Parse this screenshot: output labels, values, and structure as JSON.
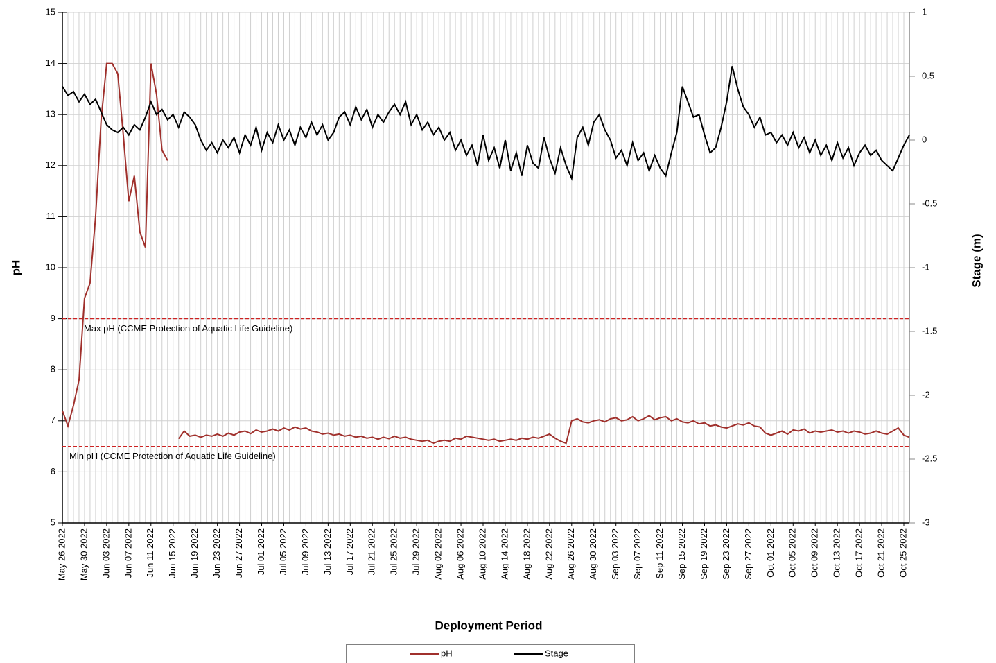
{
  "chart_data": {
    "type": "line",
    "x_label": "Deployment Period",
    "y_label": "pH",
    "y2_label": "Stage (m)",
    "ylim": [
      5,
      15
    ],
    "yticks": [
      5,
      6,
      7,
      8,
      9,
      10,
      11,
      12,
      13,
      14,
      15
    ],
    "y2lim": [
      -3,
      1
    ],
    "y2ticks": [
      -3,
      -2.5,
      -2,
      -1.5,
      -1,
      -0.5,
      0,
      0.5,
      1
    ],
    "grid": true,
    "legend": "bottom",
    "xlim": [
      "2022-05-26",
      "2022-10-26"
    ],
    "xticks": [
      {
        "value": "2022-05-26",
        "label": "May 26 2022"
      },
      {
        "value": "2022-05-30",
        "label": "May 30 2022"
      },
      {
        "value": "2022-06-03",
        "label": "Jun 03 2022"
      },
      {
        "value": "2022-06-07",
        "label": "Jun 07 2022"
      },
      {
        "value": "2022-06-11",
        "label": "Jun 11 2022"
      },
      {
        "value": "2022-06-15",
        "label": "Jun 15 2022"
      },
      {
        "value": "2022-06-19",
        "label": "Jun 19 2022"
      },
      {
        "value": "2022-06-23",
        "label": "Jun 23 2022"
      },
      {
        "value": "2022-06-27",
        "label": "Jun 27 2022"
      },
      {
        "value": "2022-07-01",
        "label": "Jul 01 2022"
      },
      {
        "value": "2022-07-05",
        "label": "Jul 05 2022"
      },
      {
        "value": "2022-07-09",
        "label": "Jul 09 2022"
      },
      {
        "value": "2022-07-13",
        "label": "Jul 13 2022"
      },
      {
        "value": "2022-07-17",
        "label": "Jul 17 2022"
      },
      {
        "value": "2022-07-21",
        "label": "Jul 21 2022"
      },
      {
        "value": "2022-07-25",
        "label": "Jul 25 2022"
      },
      {
        "value": "2022-07-29",
        "label": "Jul 29 2022"
      },
      {
        "value": "2022-08-02",
        "label": "Aug 02 2022"
      },
      {
        "value": "2022-08-06",
        "label": "Aug 06 2022"
      },
      {
        "value": "2022-08-10",
        "label": "Aug 10 2022"
      },
      {
        "value": "2022-08-14",
        "label": "Aug 14 2022"
      },
      {
        "value": "2022-08-18",
        "label": "Aug 18 2022"
      },
      {
        "value": "2022-08-22",
        "label": "Aug 22 2022"
      },
      {
        "value": "2022-08-26",
        "label": "Aug 26 2022"
      },
      {
        "value": "2022-08-30",
        "label": "Aug 30 2022"
      },
      {
        "value": "2022-09-03",
        "label": "Sep 03 2022"
      },
      {
        "value": "2022-09-07",
        "label": "Sep 07 2022"
      },
      {
        "value": "2022-09-11",
        "label": "Sep 11 2022"
      },
      {
        "value": "2022-09-15",
        "label": "Sep 15 2022"
      },
      {
        "value": "2022-09-19",
        "label": "Sep 19 2022"
      },
      {
        "value": "2022-09-23",
        "label": "Sep 23 2022"
      },
      {
        "value": "2022-09-27",
        "label": "Sep 27 2022"
      },
      {
        "value": "2022-10-01",
        "label": "Oct 01 2022"
      },
      {
        "value": "2022-10-05",
        "label": "Oct 05 2022"
      },
      {
        "value": "2022-10-09",
        "label": "Oct 09 2022"
      },
      {
        "value": "2022-10-13",
        "label": "Oct 13 2022"
      },
      {
        "value": "2022-10-17",
        "label": "Oct 17 2022"
      },
      {
        "value": "2022-10-21",
        "label": "Oct 21 2022"
      },
      {
        "value": "2022-10-25",
        "label": "Oct 25 2022"
      }
    ],
    "reference_lines": [
      {
        "value": 9,
        "label": "Max pH  (CCME  Protection of Aquatic Life Guideline)",
        "color": "#cc2222"
      },
      {
        "value": 6.5,
        "label": "Min pH  (CCME  Protection of Aquatic Life Guideline)",
        "color": "#cc2222"
      }
    ],
    "x": [
      "2022-05-26",
      "2022-05-27",
      "2022-05-28",
      "2022-05-29",
      "2022-05-30",
      "2022-05-31",
      "2022-06-01",
      "2022-06-02",
      "2022-06-03",
      "2022-06-04",
      "2022-06-05",
      "2022-06-06",
      "2022-06-07",
      "2022-06-08",
      "2022-06-09",
      "2022-06-10",
      "2022-06-11",
      "2022-06-12",
      "2022-06-13",
      "2022-06-14",
      "2022-06-15",
      "2022-06-16",
      "2022-06-17",
      "2022-06-18",
      "2022-06-19",
      "2022-06-20",
      "2022-06-21",
      "2022-06-22",
      "2022-06-23",
      "2022-06-24",
      "2022-06-25",
      "2022-06-26",
      "2022-06-27",
      "2022-06-28",
      "2022-06-29",
      "2022-06-30",
      "2022-07-01",
      "2022-07-02",
      "2022-07-03",
      "2022-07-04",
      "2022-07-05",
      "2022-07-06",
      "2022-07-07",
      "2022-07-08",
      "2022-07-09",
      "2022-07-10",
      "2022-07-11",
      "2022-07-12",
      "2022-07-13",
      "2022-07-14",
      "2022-07-15",
      "2022-07-16",
      "2022-07-17",
      "2022-07-18",
      "2022-07-19",
      "2022-07-20",
      "2022-07-21",
      "2022-07-22",
      "2022-07-23",
      "2022-07-24",
      "2022-07-25",
      "2022-07-26",
      "2022-07-27",
      "2022-07-28",
      "2022-07-29",
      "2022-07-30",
      "2022-07-31",
      "2022-08-01",
      "2022-08-02",
      "2022-08-03",
      "2022-08-04",
      "2022-08-05",
      "2022-08-06",
      "2022-08-07",
      "2022-08-08",
      "2022-08-09",
      "2022-08-10",
      "2022-08-11",
      "2022-08-12",
      "2022-08-13",
      "2022-08-14",
      "2022-08-15",
      "2022-08-16",
      "2022-08-17",
      "2022-08-18",
      "2022-08-19",
      "2022-08-20",
      "2022-08-21",
      "2022-08-22",
      "2022-08-23",
      "2022-08-24",
      "2022-08-25",
      "2022-08-26",
      "2022-08-27",
      "2022-08-28",
      "2022-08-29",
      "2022-08-30",
      "2022-08-31",
      "2022-09-01",
      "2022-09-02",
      "2022-09-03",
      "2022-09-04",
      "2022-09-05",
      "2022-09-06",
      "2022-09-07",
      "2022-09-08",
      "2022-09-09",
      "2022-09-10",
      "2022-09-11",
      "2022-09-12",
      "2022-09-13",
      "2022-09-14",
      "2022-09-15",
      "2022-09-16",
      "2022-09-17",
      "2022-09-18",
      "2022-09-19",
      "2022-09-20",
      "2022-09-21",
      "2022-09-22",
      "2022-09-23",
      "2022-09-24",
      "2022-09-25",
      "2022-09-26",
      "2022-09-27",
      "2022-09-28",
      "2022-09-29",
      "2022-09-30",
      "2022-10-01",
      "2022-10-02",
      "2022-10-03",
      "2022-10-04",
      "2022-10-05",
      "2022-10-06",
      "2022-10-07",
      "2022-10-08",
      "2022-10-09",
      "2022-10-10",
      "2022-10-11",
      "2022-10-12",
      "2022-10-13",
      "2022-10-14",
      "2022-10-15",
      "2022-10-16",
      "2022-10-17",
      "2022-10-18",
      "2022-10-19",
      "2022-10-20",
      "2022-10-21",
      "2022-10-22",
      "2022-10-23",
      "2022-10-24",
      "2022-10-25",
      "2022-10-26"
    ],
    "series": [
      {
        "name": "pH",
        "color": "#a0302c",
        "axis": "y",
        "values": [
          7.2,
          6.9,
          7.3,
          7.8,
          9.4,
          9.7,
          11.0,
          12.9,
          14,
          14,
          13.8,
          12.6,
          11.3,
          11.8,
          10.7,
          10.4,
          14,
          13.4,
          12.3,
          12.1,
          null,
          6.65,
          6.8,
          6.7,
          6.72,
          6.68,
          6.72,
          6.7,
          6.74,
          6.7,
          6.76,
          6.72,
          6.78,
          6.8,
          6.75,
          6.82,
          6.78,
          6.8,
          6.84,
          6.8,
          6.86,
          6.82,
          6.88,
          6.84,
          6.86,
          6.8,
          6.78,
          6.74,
          6.76,
          6.72,
          6.74,
          6.7,
          6.72,
          6.68,
          6.7,
          6.66,
          6.68,
          6.64,
          6.68,
          6.65,
          6.7,
          6.66,
          6.68,
          6.64,
          6.62,
          6.6,
          6.62,
          6.56,
          6.6,
          6.62,
          6.6,
          6.66,
          6.64,
          6.7,
          6.68,
          6.66,
          6.64,
          6.62,
          6.64,
          6.6,
          6.62,
          6.64,
          6.62,
          6.66,
          6.64,
          6.68,
          6.66,
          6.7,
          6.74,
          6.66,
          6.6,
          6.56,
          7.0,
          7.04,
          6.98,
          6.96,
          7.0,
          7.02,
          6.98,
          7.04,
          7.06,
          7.0,
          7.02,
          7.08,
          7.0,
          7.04,
          7.1,
          7.02,
          7.06,
          7.08,
          7.0,
          7.04,
          6.98,
          6.96,
          7.0,
          6.94,
          6.96,
          6.9,
          6.92,
          6.88,
          6.86,
          6.9,
          6.94,
          6.92,
          6.96,
          6.9,
          6.88,
          6.76,
          6.72,
          6.76,
          6.8,
          6.74,
          6.82,
          6.8,
          6.84,
          6.76,
          6.8,
          6.78,
          6.8,
          6.82,
          6.78,
          6.8,
          6.76,
          6.8,
          6.78,
          6.74,
          6.76,
          6.8,
          6.76,
          6.74,
          6.8,
          6.86,
          6.72,
          6.68
        ]
      },
      {
        "name": "Stage",
        "color": "#000000",
        "axis": "y2",
        "values": [
          0.42,
          0.35,
          0.38,
          0.3,
          0.36,
          0.28,
          0.32,
          0.22,
          0.12,
          0.08,
          0.06,
          0.1,
          0.04,
          0.12,
          0.08,
          0.18,
          0.3,
          0.2,
          0.24,
          0.16,
          0.2,
          0.1,
          0.22,
          0.18,
          0.12,
          0.0,
          -0.08,
          -0.02,
          -0.1,
          0.0,
          -0.06,
          0.02,
          -0.1,
          0.04,
          -0.04,
          0.1,
          -0.08,
          0.06,
          -0.02,
          0.12,
          0.0,
          0.08,
          -0.04,
          0.1,
          0.02,
          0.14,
          0.04,
          0.12,
          0.0,
          0.06,
          0.18,
          0.22,
          0.12,
          0.26,
          0.16,
          0.24,
          0.1,
          0.2,
          0.14,
          0.22,
          0.28,
          0.2,
          0.3,
          0.12,
          0.2,
          0.08,
          0.14,
          0.04,
          0.1,
          0.0,
          0.06,
          -0.08,
          0.0,
          -0.12,
          -0.04,
          -0.2,
          0.04,
          -0.16,
          -0.06,
          -0.22,
          0.0,
          -0.24,
          -0.1,
          -0.28,
          -0.04,
          -0.18,
          -0.22,
          0.02,
          -0.14,
          -0.26,
          -0.06,
          -0.2,
          -0.3,
          0.02,
          0.1,
          -0.04,
          0.14,
          0.2,
          0.08,
          0.0,
          -0.14,
          -0.08,
          -0.2,
          -0.02,
          -0.16,
          -0.1,
          -0.24,
          -0.12,
          -0.22,
          -0.28,
          -0.1,
          0.06,
          0.42,
          0.3,
          0.18,
          0.2,
          0.04,
          -0.1,
          -0.06,
          0.1,
          0.3,
          0.58,
          0.4,
          0.26,
          0.2,
          0.1,
          0.18,
          0.04,
          0.06,
          -0.02,
          0.04,
          -0.04,
          0.06,
          -0.06,
          0.02,
          -0.1,
          0.0,
          -0.12,
          -0.04,
          -0.16,
          -0.02,
          -0.14,
          -0.06,
          -0.2,
          -0.1,
          -0.04,
          -0.12,
          -0.08,
          -0.16,
          -0.2,
          -0.24,
          -0.14,
          -0.04,
          0.04
        ]
      }
    ]
  }
}
